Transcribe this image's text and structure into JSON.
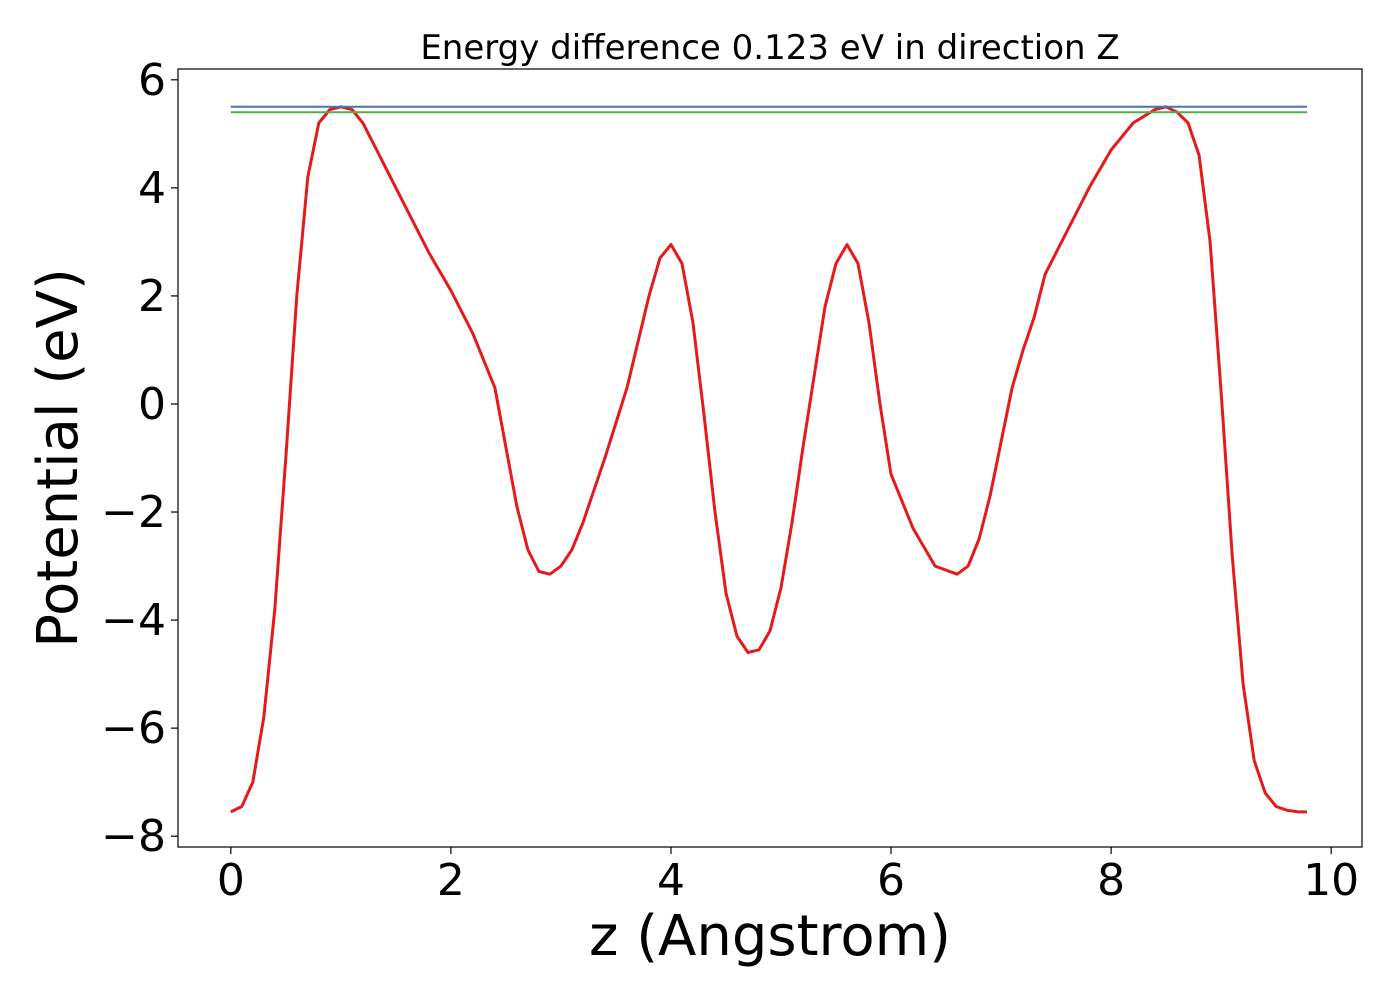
{
  "chart_data": {
    "type": "line",
    "title": "Energy difference 0.123 eV in direction Z",
    "xlabel": "z (Angstrom)",
    "ylabel": "Potential (eV)",
    "xlim": [
      -0.48,
      10.28
    ],
    "ylim": [
      -8.2,
      6.2
    ],
    "xticks": [
      0,
      2,
      4,
      6,
      8,
      10
    ],
    "xtick_labels": [
      "0",
      "2",
      "4",
      "6",
      "8",
      "10"
    ],
    "yticks": [
      -8,
      -6,
      -4,
      -2,
      0,
      2,
      4,
      6
    ],
    "ytick_labels": [
      "−8",
      "−6",
      "−4",
      "−2",
      "0",
      "2",
      "4",
      "6"
    ],
    "grid": false,
    "legend": "none",
    "series": [
      {
        "color": "#e41a1c",
        "x": [
          0.0,
          0.1,
          0.2,
          0.3,
          0.4,
          0.5,
          0.6,
          0.7,
          0.8,
          0.9,
          1.0,
          1.1,
          1.2,
          1.3,
          1.4,
          1.5,
          1.6,
          1.8,
          2.0,
          2.2,
          2.4,
          2.5,
          2.6,
          2.7,
          2.8,
          2.9,
          3.0,
          3.1,
          3.2,
          3.4,
          3.6,
          3.8,
          3.9,
          4.0,
          4.1,
          4.2,
          4.3,
          4.4,
          4.5,
          4.6,
          4.7,
          4.8,
          4.9,
          5.0,
          5.1,
          5.2,
          5.3,
          5.4,
          5.5,
          5.6,
          5.7,
          5.8,
          5.9,
          6.0,
          6.2,
          6.4,
          6.6,
          6.7,
          6.8,
          6.9,
          7.0,
          7.1,
          7.2,
          7.3,
          7.4,
          7.6,
          7.8,
          8.0,
          8.2,
          8.4,
          8.5,
          8.6,
          8.7,
          8.8,
          8.9,
          9.0,
          9.1,
          9.2,
          9.3,
          9.4,
          9.5,
          9.6,
          9.7,
          9.78
        ],
        "y": [
          -7.55,
          -7.45,
          -7.0,
          -5.8,
          -3.8,
          -1.0,
          2.0,
          4.2,
          5.2,
          5.45,
          5.5,
          5.45,
          5.2,
          4.8,
          4.4,
          4.0,
          3.6,
          2.8,
          2.1,
          1.3,
          0.3,
          -0.8,
          -1.9,
          -2.7,
          -3.1,
          -3.15,
          -3.0,
          -2.7,
          -2.2,
          -1.0,
          0.3,
          2.0,
          2.7,
          2.95,
          2.6,
          1.5,
          -0.2,
          -2.0,
          -3.5,
          -4.3,
          -4.6,
          -4.55,
          -4.2,
          -3.4,
          -2.2,
          -0.8,
          0.5,
          1.8,
          2.6,
          2.95,
          2.6,
          1.5,
          0.0,
          -1.3,
          -2.3,
          -3.0,
          -3.15,
          -3.0,
          -2.5,
          -1.7,
          -0.7,
          0.3,
          1.0,
          1.6,
          2.4,
          3.2,
          4.0,
          4.7,
          5.2,
          5.45,
          5.5,
          5.4,
          5.2,
          4.6,
          3.0,
          0.2,
          -2.8,
          -5.2,
          -6.6,
          -7.2,
          -7.45,
          -7.52,
          -7.55,
          -7.55
        ]
      },
      {
        "color": "#4c72b0",
        "x": [
          0.0,
          9.78
        ],
        "y": [
          5.5,
          5.5
        ]
      },
      {
        "color": "#4daf4a",
        "x": [
          0.0,
          9.78
        ],
        "y": [
          5.4,
          5.4
        ]
      }
    ]
  }
}
